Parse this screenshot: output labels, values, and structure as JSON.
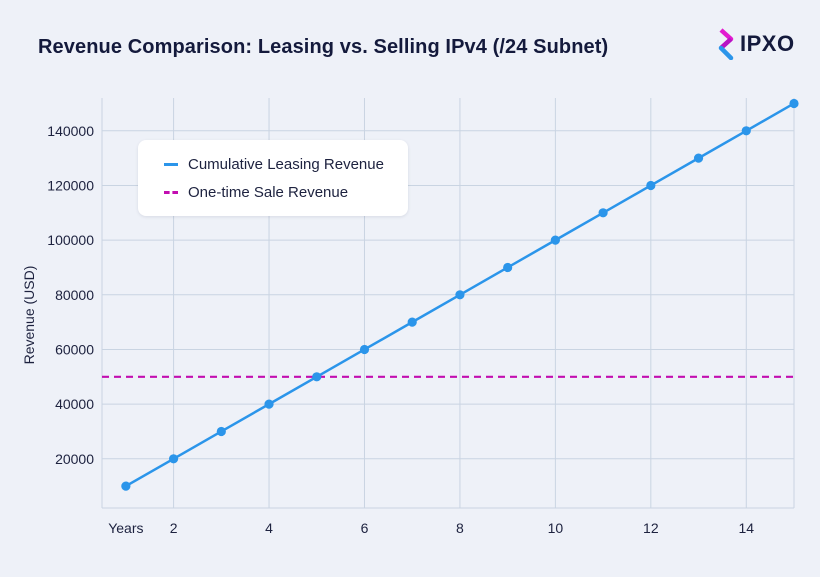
{
  "title": "Revenue Comparison: Leasing vs. Selling IPv4 (/24 Subnet)",
  "logo": {
    "text": "IPXO",
    "icon": "ipxo-logo-icon"
  },
  "colors": {
    "background": "#eef1f8",
    "plot_background": "#eef1f8",
    "grid": "#c9d4e2",
    "leasing": "#2b95ea",
    "sale": "#c20eb0",
    "text": "#141a3c"
  },
  "chart_data": {
    "type": "line",
    "title": "Revenue Comparison: Leasing vs. Selling IPv4 (/24 Subnet)",
    "xlabel": "",
    "ylabel": "Revenue (USD)",
    "x": [
      1,
      2,
      3,
      4,
      5,
      6,
      7,
      8,
      9,
      10,
      11,
      12,
      13,
      14,
      15
    ],
    "xlim": [
      0.5,
      15
    ],
    "ylim": [
      2000,
      152000
    ],
    "x_ticks": [
      2,
      4,
      6,
      8,
      10,
      12,
      14
    ],
    "x_tick_labels": [
      "2",
      "4",
      "6",
      "8",
      "10",
      "12",
      "14"
    ],
    "x_first_label": "Years",
    "y_ticks": [
      20000,
      40000,
      60000,
      80000,
      100000,
      120000,
      140000
    ],
    "y_tick_labels": [
      "20000",
      "40000",
      "60000",
      "80000",
      "100000",
      "120000",
      "140000"
    ],
    "grid": true,
    "legend_position": "top-left",
    "series": [
      {
        "name": "Cumulative Leasing Revenue",
        "style": "solid-with-markers",
        "values": [
          10000,
          20000,
          30000,
          40000,
          50000,
          60000,
          70000,
          80000,
          90000,
          100000,
          110000,
          120000,
          130000,
          140000,
          150000
        ]
      },
      {
        "name": "One-time Sale Revenue",
        "style": "dashed",
        "values": [
          50000,
          50000,
          50000,
          50000,
          50000,
          50000,
          50000,
          50000,
          50000,
          50000,
          50000,
          50000,
          50000,
          50000,
          50000
        ]
      }
    ]
  }
}
